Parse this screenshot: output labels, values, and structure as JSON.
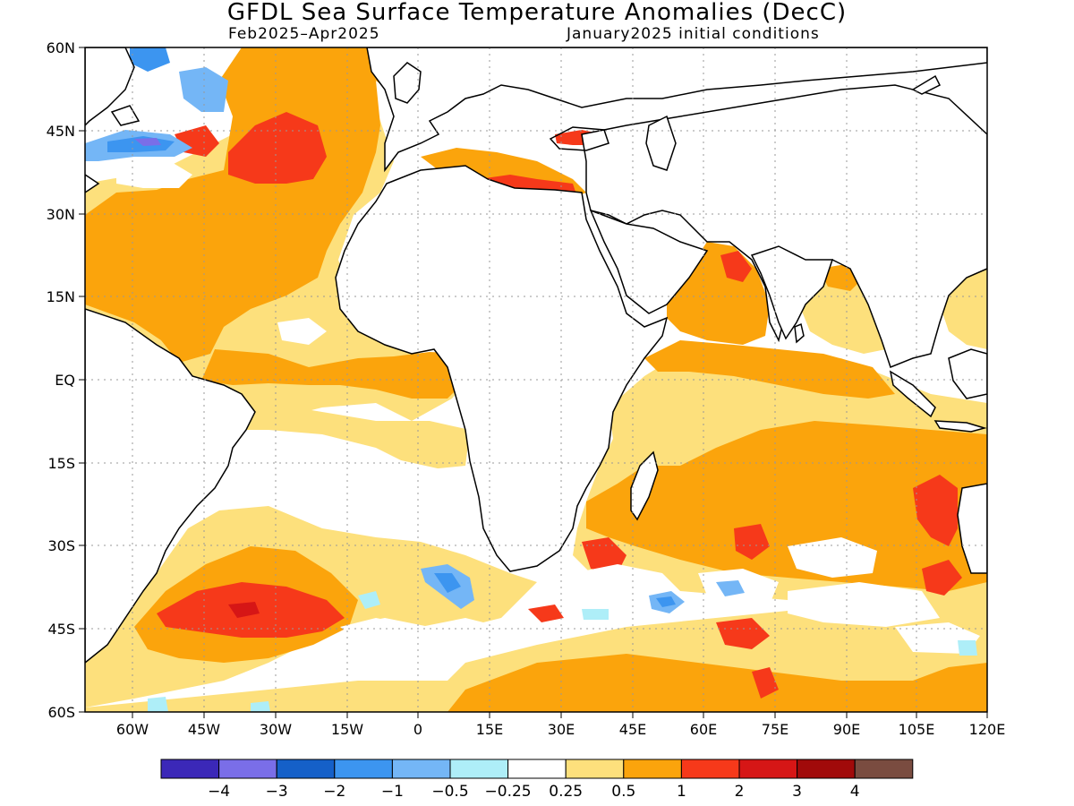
{
  "title": "GFDL Sea Surface Temperature Anomalies (DecC)",
  "subtitle_left": "Feb2025–Apr2025",
  "subtitle_right": "January2025 initial conditions",
  "lat_labels": [
    "60N",
    "45N",
    "30N",
    "15N",
    "EQ",
    "15S",
    "30S",
    "45S",
    "60S"
  ],
  "lon_labels": [
    "60W",
    "45W",
    "30W",
    "15W",
    "0",
    "15E",
    "30E",
    "45E",
    "60E",
    "75E",
    "90E",
    "105E",
    "120E"
  ],
  "colorbar": {
    "colors": [
      "#3b28b8",
      "#7a6ee8",
      "#1560c8",
      "#3c95f0",
      "#74b6f6",
      "#aeeef8",
      "#ffffff",
      "#fde07c",
      "#fba40c",
      "#f6391a",
      "#d61616",
      "#a10a0a",
      "#7a4c40"
    ],
    "labels": [
      "−4",
      "−3",
      "−2",
      "−1",
      "−0.5",
      "−0.25",
      "0.25",
      "0.5",
      "1",
      "2",
      "3",
      "4"
    ]
  },
  "colors": {
    "light_yellow": "#fde07c",
    "orange": "#fba40c",
    "red_orange": "#f6391a",
    "red": "#d61616",
    "dark_red": "#a10a0a",
    "light_blue": "#aeeef8",
    "blue": "#3c95f0",
    "land_outline": "#000000"
  }
}
